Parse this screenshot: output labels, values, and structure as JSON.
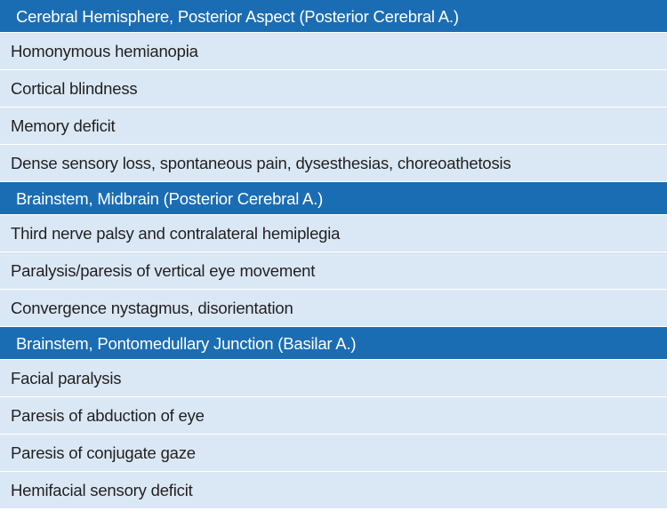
{
  "sections": [
    {
      "title": "Cerebral Hemisphere, Posterior Aspect (Posterior Cerebral A.)",
      "rows": [
        "Homonymous hemianopia",
        "Cortical blindness",
        "Memory deficit",
        "Dense sensory loss, spontaneous pain, dysesthesias, choreoathetosis"
      ]
    },
    {
      "title": "Brainstem, Midbrain (Posterior Cerebral A.)",
      "rows": [
        "Third nerve palsy and contralateral hemiplegia",
        "Paralysis/paresis of vertical eye movement",
        "Convergence nystagmus, disorientation"
      ]
    },
    {
      "title": "Brainstem, Pontomedullary Junction (Basilar A.)",
      "rows": [
        "Facial paralysis",
        "Paresis of abduction of eye",
        "Paresis of conjugate gaze",
        "Hemifacial sensory deficit"
      ]
    }
  ]
}
